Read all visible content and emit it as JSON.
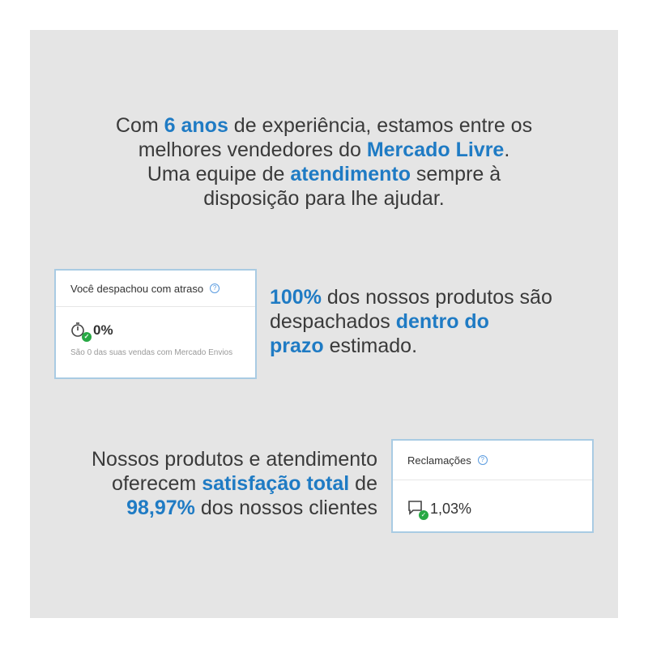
{
  "headline": {
    "lines": [
      [
        {
          "t": "Com ",
          "h": false
        },
        {
          "t": "6 anos",
          "h": true
        },
        {
          "t": " de experiência, estamos entre os",
          "h": false
        }
      ],
      [
        {
          "t": "melhores vendedores do ",
          "h": false
        },
        {
          "t": "Mercado Livre",
          "h": true
        },
        {
          "t": ".",
          "h": false
        }
      ],
      [
        {
          "t": "Uma equipe de ",
          "h": false
        },
        {
          "t": "atendimento",
          "h": true
        },
        {
          "t": " sempre à",
          "h": false
        }
      ],
      [
        {
          "t": "disposição para lhe ajudar.",
          "h": false
        }
      ]
    ]
  },
  "shipping_text": {
    "lines": [
      [
        {
          "t": "100%",
          "h": true
        },
        {
          "t": " dos nossos produtos são",
          "h": false
        }
      ],
      [
        {
          "t": "despachados ",
          "h": false
        },
        {
          "t": "dentro do",
          "h": true
        }
      ],
      [
        {
          "t": "prazo",
          "h": true
        },
        {
          "t": " estimado.",
          "h": false
        }
      ]
    ]
  },
  "satisfaction_text": {
    "lines": [
      [
        {
          "t": "Nossos produtos e atendimento",
          "h": false
        }
      ],
      [
        {
          "t": "oferecem ",
          "h": false
        },
        {
          "t": "satisfação total",
          "h": true
        },
        {
          "t": " de",
          "h": false
        }
      ],
      [
        {
          "t": "98,97%",
          "h": true
        },
        {
          "t": " dos nossos clientes",
          "h": false
        }
      ]
    ]
  },
  "late_card": {
    "title": "Você despachou com atraso",
    "help": "?",
    "value": "0%",
    "note": "São 0 das suas vendas com Mercado Envios",
    "icon": "stopwatch-check-icon"
  },
  "claims_card": {
    "title": "Reclamações",
    "help": "?",
    "value": "1,03%",
    "icon": "chat-check-icon"
  },
  "colors": {
    "accent": "#1f7bc4",
    "background": "#e5e5e5",
    "success": "#27a844"
  }
}
